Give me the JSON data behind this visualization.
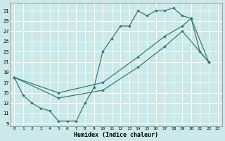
{
  "bg_color": "#cce9e9",
  "grid_color": "#b8d8d8",
  "line_color": "#2a7a6f",
  "xlim": [
    -0.5,
    23.5
  ],
  "ylim": [
    8.5,
    32.5
  ],
  "xticks": [
    0,
    1,
    2,
    3,
    4,
    5,
    6,
    7,
    8,
    9,
    10,
    11,
    12,
    13,
    14,
    15,
    16,
    17,
    18,
    19,
    20,
    21,
    22,
    23
  ],
  "yticks": [
    9,
    11,
    13,
    15,
    17,
    19,
    21,
    23,
    25,
    27,
    29,
    31
  ],
  "xlabel": "Humidex (Indice chaleur)",
  "line1_x": [
    0,
    1,
    2,
    3,
    4,
    5,
    6,
    7,
    8,
    9,
    10,
    11,
    12,
    13,
    14,
    15,
    16,
    17,
    18,
    19,
    20,
    21,
    22
  ],
  "line1_y": [
    18,
    14.5,
    13,
    12,
    11.5,
    9.5,
    9.5,
    9.5,
    13,
    16,
    23,
    25.5,
    28,
    28,
    31,
    30,
    31,
    31,
    31.5,
    30,
    29.5,
    23,
    21
  ],
  "line2_x": [
    0,
    5,
    10,
    14,
    17,
    19,
    20,
    22
  ],
  "line2_y": [
    18,
    15,
    17,
    22,
    26,
    28,
    29.5,
    21
  ],
  "line3_x": [
    0,
    5,
    10,
    14,
    17,
    19,
    22
  ],
  "line3_y": [
    18,
    14,
    15.5,
    20,
    24,
    27,
    21
  ]
}
